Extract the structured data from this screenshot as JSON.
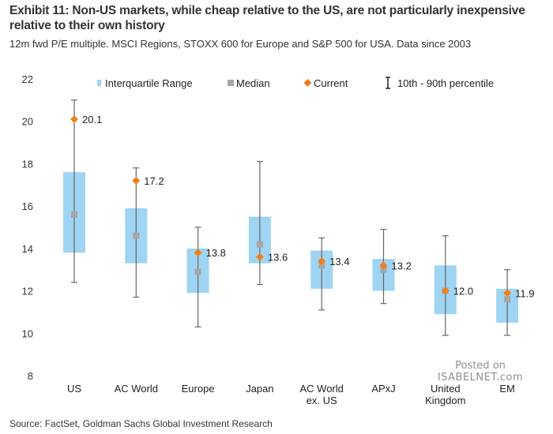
{
  "title": "Exhibit 11: Non-US markets, while cheap relative to the US, are not particularly inexpensive relative to their own history",
  "subtitle": "12m fwd P/E multiple. MSCI Regions, STOXX 600 for Europe and S&P 500 for USA. Data since 2003",
  "source": "Source: FactSet, Goldman Sachs Global Investment Research",
  "watermark": {
    "line1": "Posted on",
    "line2": "ISABELNET.com"
  },
  "colors": {
    "iqr": "#9fd4f2",
    "median": "#a6a6a6",
    "current": "#f07f1b",
    "whisker": "#666666"
  },
  "chart_data": {
    "type": "box",
    "ylim": [
      8,
      22
    ],
    "yticks": [
      8,
      10,
      12,
      14,
      16,
      18,
      20,
      22
    ],
    "legend": {
      "position": "top",
      "items": [
        {
          "key": "iqr",
          "label": "Interquartile Range"
        },
        {
          "key": "median",
          "label": "Median"
        },
        {
          "key": "current",
          "label": "Current"
        },
        {
          "key": "range",
          "label": "10th - 90th percentile"
        }
      ]
    },
    "categories": [
      {
        "label": [
          "US"
        ],
        "p10": 12.4,
        "q1": 13.8,
        "median": 15.6,
        "q3": 17.6,
        "p90": 21.0,
        "current": 20.1,
        "current_label": "20.1"
      },
      {
        "label": [
          "AC World"
        ],
        "p10": 11.7,
        "q1": 13.3,
        "median": 14.6,
        "q3": 15.9,
        "p90": 17.8,
        "current": 17.2,
        "current_label": "17.2"
      },
      {
        "label": [
          "Europe"
        ],
        "p10": 10.3,
        "q1": 11.9,
        "median": 12.9,
        "q3": 14.0,
        "p90": 15.0,
        "current": 13.8,
        "current_label": "13.8"
      },
      {
        "label": [
          "Japan"
        ],
        "p10": 12.3,
        "q1": 13.3,
        "median": 14.2,
        "q3": 15.5,
        "p90": 18.1,
        "current": 13.6,
        "current_label": "13.6"
      },
      {
        "label": [
          "AC World",
          "ex. US"
        ],
        "p10": 11.1,
        "q1": 12.1,
        "median": 13.2,
        "q3": 13.9,
        "p90": 14.5,
        "current": 13.4,
        "current_label": "13.4"
      },
      {
        "label": [
          "APxJ"
        ],
        "p10": 11.4,
        "q1": 12.0,
        "median": 13.0,
        "q3": 13.5,
        "p90": 14.9,
        "current": 13.2,
        "current_label": "13.2"
      },
      {
        "label": [
          "United",
          "Kingdom"
        ],
        "p10": 9.9,
        "q1": 10.9,
        "median": 12.0,
        "q3": 13.2,
        "p90": 14.6,
        "current": 12.0,
        "current_label": "12.0"
      },
      {
        "label": [
          "EM"
        ],
        "p10": 9.9,
        "q1": 10.5,
        "median": 11.6,
        "q3": 12.1,
        "p90": 13.0,
        "current": 11.9,
        "current_label": "11.9"
      }
    ]
  }
}
